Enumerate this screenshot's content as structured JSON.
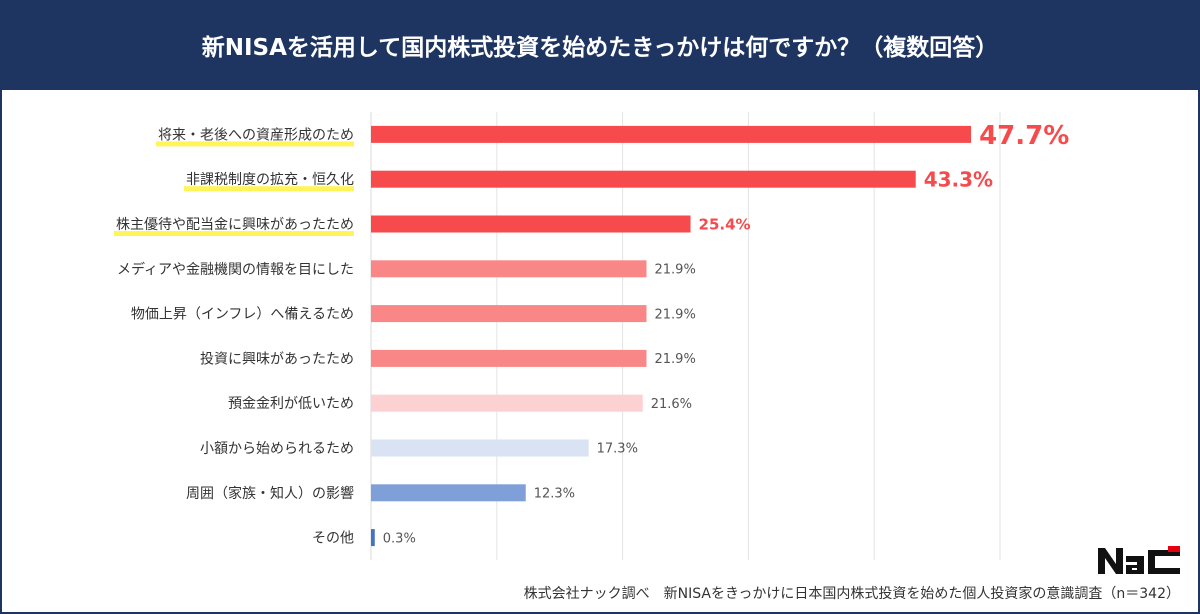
{
  "header": {
    "title": "新NISAを活用して国内株式投資を始めたきっかけは何ですか？（複数回答）"
  },
  "chart_data": {
    "type": "bar",
    "orientation": "horizontal",
    "title": "新NISAを活用して国内株式投資を始めたきっかけは何ですか？（複数回答）",
    "categories": [
      "将来・老後への資産形成のため",
      "非課税制度の拡充・恒久化",
      "株主優待や配当金に興味があったため",
      "メディアや金融機関の情報を目にした",
      "物価上昇（インフレ）へ備えるため",
      "投資に興味があったため",
      "預金金利が低いため",
      "小額から始められるため",
      "周囲（家族・知人）の影響",
      "その他"
    ],
    "values": [
      47.7,
      43.3,
      25.4,
      21.9,
      21.9,
      21.9,
      21.6,
      17.3,
      12.3,
      0.3
    ],
    "labels": [
      "47.7%",
      "43.3%",
      "25.4%",
      "21.9%",
      "21.9%",
      "21.9%",
      "21.6%",
      "17.3%",
      "12.3%",
      "0.3%"
    ],
    "colors": [
      "#f74a4c",
      "#f74a4c",
      "#f74a4c",
      "#f98787",
      "#f98787",
      "#f98787",
      "#fdd0d1",
      "#dae3f3",
      "#7f9fd8",
      "#4472c4"
    ],
    "highlighted": [
      true,
      true,
      true,
      false,
      false,
      false,
      false,
      false,
      false,
      false
    ],
    "highlight_color": "#fff45a",
    "xlim": [
      0,
      50
    ],
    "grid": true,
    "unit": "%"
  },
  "footer": {
    "source": "株式会社ナック調べ　新NISAをきっかけに日本国内株式投資を始めた個人投資家の意識調査（n＝342）"
  },
  "logo": {
    "text": "NAC"
  },
  "colors": {
    "header": "#1e3461",
    "accent": "#f74a4c"
  }
}
